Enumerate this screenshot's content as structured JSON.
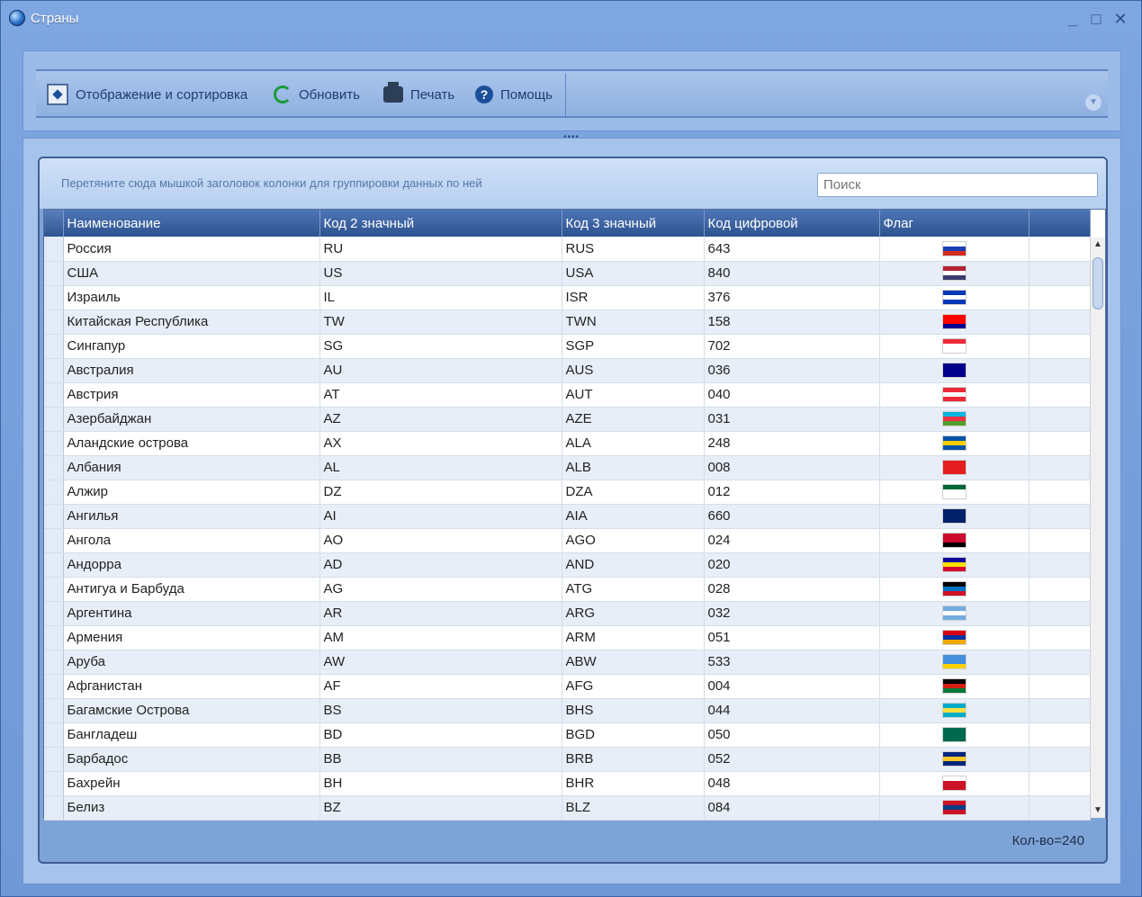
{
  "window": {
    "title": "Страны",
    "icon": "globe-icon",
    "controls": {
      "minimize": "_",
      "maximize": "□",
      "close": "✕"
    }
  },
  "toolbar": {
    "display_sort_label": "Отображение и сортировка",
    "refresh_label": "Обновить",
    "print_label": "Печать",
    "help_label": "Помощь",
    "help_glyph": "?",
    "expand_glyph": "▼",
    "grip": "••••"
  },
  "grid": {
    "group_hint": "Перетяните сюда мышкой заголовок колонки для группировки данных по ней",
    "search_placeholder": "Поиск",
    "columns": [
      "Наименование",
      "Код 2 значный",
      "Код 3 значный",
      "Код цифровой",
      "Флаг"
    ],
    "rows": [
      {
        "name": "Россия",
        "code2": "RU",
        "code3": "RUS",
        "num": "643",
        "flag": [
          "#ffffff",
          "#1c3fb5",
          "#d52b1e"
        ]
      },
      {
        "name": "США",
        "code2": "US",
        "code3": "USA",
        "num": "840",
        "flag": [
          "#b22234",
          "#ffffff",
          "#3c3b6e"
        ]
      },
      {
        "name": "Израиль",
        "code2": "IL",
        "code3": "ISR",
        "num": "376",
        "flag": [
          "#0038b8",
          "#ffffff",
          "#0038b8"
        ]
      },
      {
        "name": "Китайская Республика",
        "code2": "TW",
        "code3": "TWN",
        "num": "158",
        "flag": [
          "#fe0000",
          "#fe0000",
          "#000095"
        ]
      },
      {
        "name": "Сингапур",
        "code2": "SG",
        "code3": "SGP",
        "num": "702",
        "flag": [
          "#ed2939",
          "#ffffff",
          "#ffffff"
        ]
      },
      {
        "name": "Австралия",
        "code2": "AU",
        "code3": "AUS",
        "num": "036",
        "flag": [
          "#00008b",
          "#00008b",
          "#00008b"
        ]
      },
      {
        "name": "Австрия",
        "code2": "AT",
        "code3": "AUT",
        "num": "040",
        "flag": [
          "#ed2939",
          "#ffffff",
          "#ed2939"
        ]
      },
      {
        "name": "Азербайджан",
        "code2": "AZ",
        "code3": "AZE",
        "num": "031",
        "flag": [
          "#00b5e2",
          "#ef3340",
          "#509e2f"
        ]
      },
      {
        "name": "Аландские острова",
        "code2": "AX",
        "code3": "ALA",
        "num": "248",
        "flag": [
          "#0053a5",
          "#ffce00",
          "#0053a5"
        ]
      },
      {
        "name": "Албания",
        "code2": "AL",
        "code3": "ALB",
        "num": "008",
        "flag": [
          "#e41e20",
          "#e41e20",
          "#e41e20"
        ]
      },
      {
        "name": "Алжир",
        "code2": "DZ",
        "code3": "DZA",
        "num": "012",
        "flag": [
          "#006633",
          "#ffffff",
          "#ffffff"
        ]
      },
      {
        "name": "Ангилья",
        "code2": "AI",
        "code3": "AIA",
        "num": "660",
        "flag": [
          "#012169",
          "#012169",
          "#012169"
        ]
      },
      {
        "name": "Ангола",
        "code2": "AO",
        "code3": "AGO",
        "num": "024",
        "flag": [
          "#cc092f",
          "#cc092f",
          "#000000"
        ]
      },
      {
        "name": "Андорра",
        "code2": "AD",
        "code3": "AND",
        "num": "020",
        "flag": [
          "#10069f",
          "#fedf00",
          "#d50032"
        ]
      },
      {
        "name": "Антигуа и Барбуда",
        "code2": "AG",
        "code3": "ATG",
        "num": "028",
        "flag": [
          "#000000",
          "#0072c6",
          "#ce1126"
        ]
      },
      {
        "name": "Аргентина",
        "code2": "AR",
        "code3": "ARG",
        "num": "032",
        "flag": [
          "#74acdf",
          "#ffffff",
          "#74acdf"
        ]
      },
      {
        "name": "Армения",
        "code2": "AM",
        "code3": "ARM",
        "num": "051",
        "flag": [
          "#d90012",
          "#0033a0",
          "#f2a800"
        ]
      },
      {
        "name": "Аруба",
        "code2": "AW",
        "code3": "ABW",
        "num": "533",
        "flag": [
          "#418fde",
          "#418fde",
          "#ffd100"
        ]
      },
      {
        "name": "Афганистан",
        "code2": "AF",
        "code3": "AFG",
        "num": "004",
        "flag": [
          "#000000",
          "#d32011",
          "#007a36"
        ]
      },
      {
        "name": "Багамские Острова",
        "code2": "BS",
        "code3": "BHS",
        "num": "044",
        "flag": [
          "#00abc9",
          "#fae042",
          "#00abc9"
        ]
      },
      {
        "name": "Бангладеш",
        "code2": "BD",
        "code3": "BGD",
        "num": "050",
        "flag": [
          "#006a4e",
          "#006a4e",
          "#006a4e"
        ]
      },
      {
        "name": "Барбадос",
        "code2": "BB",
        "code3": "BRB",
        "num": "052",
        "flag": [
          "#00267f",
          "#ffc726",
          "#00267f"
        ]
      },
      {
        "name": "Бахрейн",
        "code2": "BH",
        "code3": "BHR",
        "num": "048",
        "flag": [
          "#ffffff",
          "#ce1126",
          "#ce1126"
        ]
      },
      {
        "name": "Белиз",
        "code2": "BZ",
        "code3": "BLZ",
        "num": "084",
        "flag": [
          "#ce1126",
          "#003f87",
          "#ce1126"
        ]
      }
    ],
    "count_label": "Кол-во=240"
  }
}
